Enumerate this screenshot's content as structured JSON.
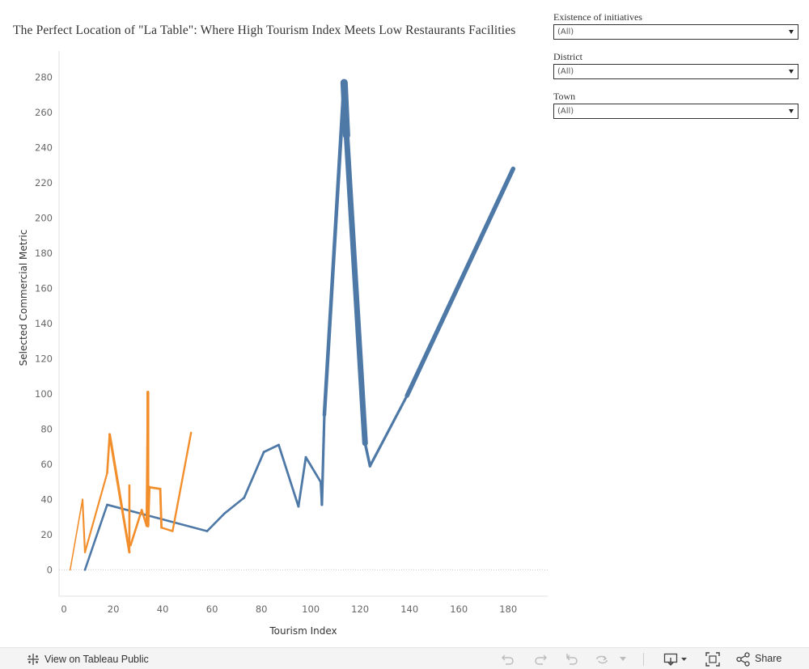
{
  "chart_data": {
    "type": "line",
    "title": "The Perfect Location of \"La Table\": Where High Tourism Index Meets Low Restaurants Facilities",
    "xlabel": "Tourism Index",
    "ylabel": "Selected Commercial Metric",
    "xlim": [
      -2,
      196
    ],
    "ylim": [
      -15,
      295
    ],
    "x_ticks": [
      "0",
      "20",
      "40",
      "60",
      "80",
      "100",
      "120",
      "140",
      "160",
      "180"
    ],
    "y_ticks": [
      "0",
      "20",
      "40",
      "60",
      "80",
      "100",
      "120",
      "140",
      "160",
      "180",
      "200",
      "220",
      "240",
      "260",
      "280"
    ],
    "zero_line": true,
    "grid": false,
    "series": [
      {
        "color": "#4e79a7",
        "x": [
          8.5,
          17.5,
          58,
          65,
          73,
          81,
          87,
          95,
          98,
          104,
          104.5,
          105.5,
          113.5,
          114.5,
          122,
          124,
          139,
          182
        ],
        "y": [
          0,
          37,
          22,
          32,
          41,
          67,
          71,
          36,
          64,
          50,
          37,
          88,
          277,
          247,
          72,
          59,
          99,
          228
        ],
        "widths": [
          2.6,
          2.6,
          2.6,
          2.6,
          2.8,
          2.8,
          2.8,
          2.8,
          2.8,
          2.8,
          3.2,
          4.5,
          9,
          7,
          3.5,
          3.2,
          5.5,
          8
        ]
      },
      {
        "color": "#f28e2b",
        "x": [
          2.5,
          7.5,
          8.5,
          17.5,
          18.5,
          23.5,
          26.5,
          26.5,
          26.5,
          27,
          31.5,
          33.5,
          34,
          34,
          34.5,
          39,
          39.5,
          44,
          51.5
        ],
        "y": [
          0,
          40,
          10,
          55,
          77,
          35,
          10,
          48,
          14,
          14,
          34,
          25,
          101,
          25,
          47,
          46,
          24,
          22,
          78
        ],
        "widths": [
          1.6,
          2.2,
          2.2,
          2.6,
          3.2,
          3,
          2.4,
          2.4,
          2.4,
          2.6,
          2.6,
          2.8,
          3.5,
          3.5,
          2.8,
          2.8,
          2.4,
          2.4,
          3
        ]
      }
    ]
  },
  "filters": [
    {
      "label": "Existence of initiatives",
      "value": "(All)"
    },
    {
      "label": "District",
      "value": "(All)"
    },
    {
      "label": "Town",
      "value": "(All)"
    }
  ],
  "footer": {
    "view_label": "View on Tableau Public",
    "share_label": "Share"
  }
}
